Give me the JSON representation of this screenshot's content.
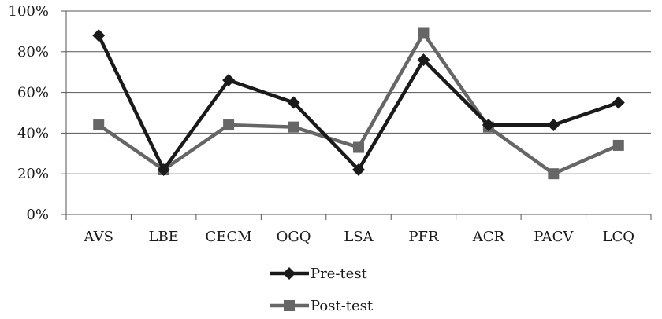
{
  "chart_data": {
    "type": "line",
    "categories": [
      "AVS",
      "LBE",
      "CECM",
      "OGQ",
      "LSA",
      "PFR",
      "ACR",
      "PACV",
      "LCQ"
    ],
    "series": [
      {
        "name": "Pre-test",
        "values": [
          88,
          22,
          66,
          55,
          22,
          76,
          44,
          44,
          55
        ],
        "color": "#1a1a1a",
        "marker": "diamond"
      },
      {
        "name": "Post-test",
        "values": [
          44,
          22,
          44,
          43,
          33,
          89,
          43,
          20,
          34
        ],
        "color": "#666666",
        "marker": "square"
      }
    ],
    "yticks": [
      "0%",
      "20%",
      "40%",
      "60%",
      "80%",
      "100%"
    ],
    "ylim": [
      0,
      100
    ],
    "grid": true,
    "legend_position": "bottom"
  }
}
